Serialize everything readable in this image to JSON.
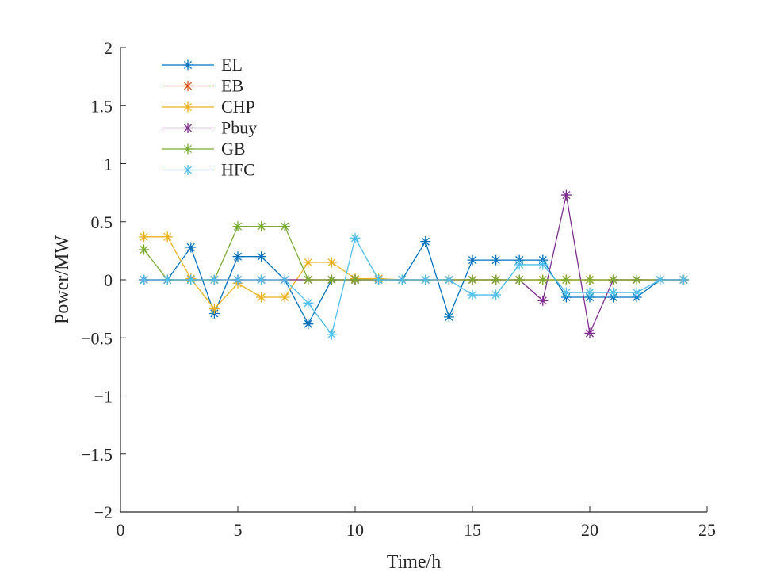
{
  "chart_data": {
    "type": "line",
    "xlabel": "Time/h",
    "ylabel": "Power/MW",
    "xlim": [
      0,
      25
    ],
    "ylim": [
      -2,
      2
    ],
    "xticks": [
      0,
      5,
      10,
      15,
      20,
      25
    ],
    "yticks": [
      -2,
      -1.5,
      -1,
      -0.5,
      0,
      0.5,
      1,
      1.5,
      2
    ],
    "ytick_labels": [
      "−2",
      "−1.5",
      "−1",
      "−0.5",
      "0",
      "0.5",
      "1",
      "1.5",
      "2"
    ],
    "grid": false,
    "legend_position": "top-left",
    "marker": "asterisk",
    "x": [
      1,
      2,
      3,
      4,
      5,
      6,
      7,
      8,
      9,
      10,
      11,
      12,
      13,
      14,
      15,
      16,
      17,
      18,
      19,
      20,
      21,
      22,
      23,
      24
    ],
    "series": [
      {
        "name": "EL",
        "color": "#0072BD",
        "values": [
          0,
          0,
          0.28,
          -0.29,
          0.2,
          0.2,
          0,
          -0.38,
          0,
          0,
          0,
          0,
          0.33,
          -0.32,
          0.17,
          0.17,
          0.17,
          0.17,
          -0.15,
          -0.15,
          -0.15,
          -0.15,
          0,
          0
        ]
      },
      {
        "name": "EB",
        "color": "#D95319",
        "values": [
          0,
          0,
          0,
          0,
          0,
          0,
          0,
          0,
          0,
          0,
          0,
          0,
          0,
          0,
          0,
          0,
          0,
          0,
          0,
          0,
          0,
          0,
          0,
          0
        ]
      },
      {
        "name": "CHP",
        "color": "#EDB120",
        "values": [
          0.37,
          0.37,
          0.01,
          -0.25,
          -0.03,
          -0.15,
          -0.15,
          0.15,
          0.15,
          0.01,
          0.01,
          0,
          0,
          0,
          0,
          0,
          0,
          0,
          0,
          0,
          0,
          0,
          0,
          0
        ]
      },
      {
        "name": "Pbuy",
        "color": "#7E2F8E",
        "values": [
          0,
          0,
          0,
          0,
          0,
          0,
          0,
          0,
          0,
          0,
          0,
          0,
          0,
          0,
          0,
          0,
          0,
          -0.18,
          0.73,
          -0.46,
          0,
          0,
          0,
          0
        ]
      },
      {
        "name": "GB",
        "color": "#77AC30",
        "values": [
          0.26,
          0,
          0,
          0,
          0.46,
          0.46,
          0.46,
          0,
          0,
          0,
          0,
          0,
          0,
          0,
          0,
          0,
          0,
          0,
          0,
          0,
          0,
          0,
          0,
          0
        ]
      },
      {
        "name": "HFC",
        "color": "#4DBEEE",
        "values": [
          0,
          0,
          0,
          0,
          0,
          0,
          0,
          -0.2,
          -0.47,
          0.36,
          0,
          0,
          0,
          0,
          -0.13,
          -0.13,
          0.13,
          0.13,
          -0.11,
          -0.11,
          -0.11,
          -0.11,
          0,
          0
        ]
      }
    ]
  }
}
